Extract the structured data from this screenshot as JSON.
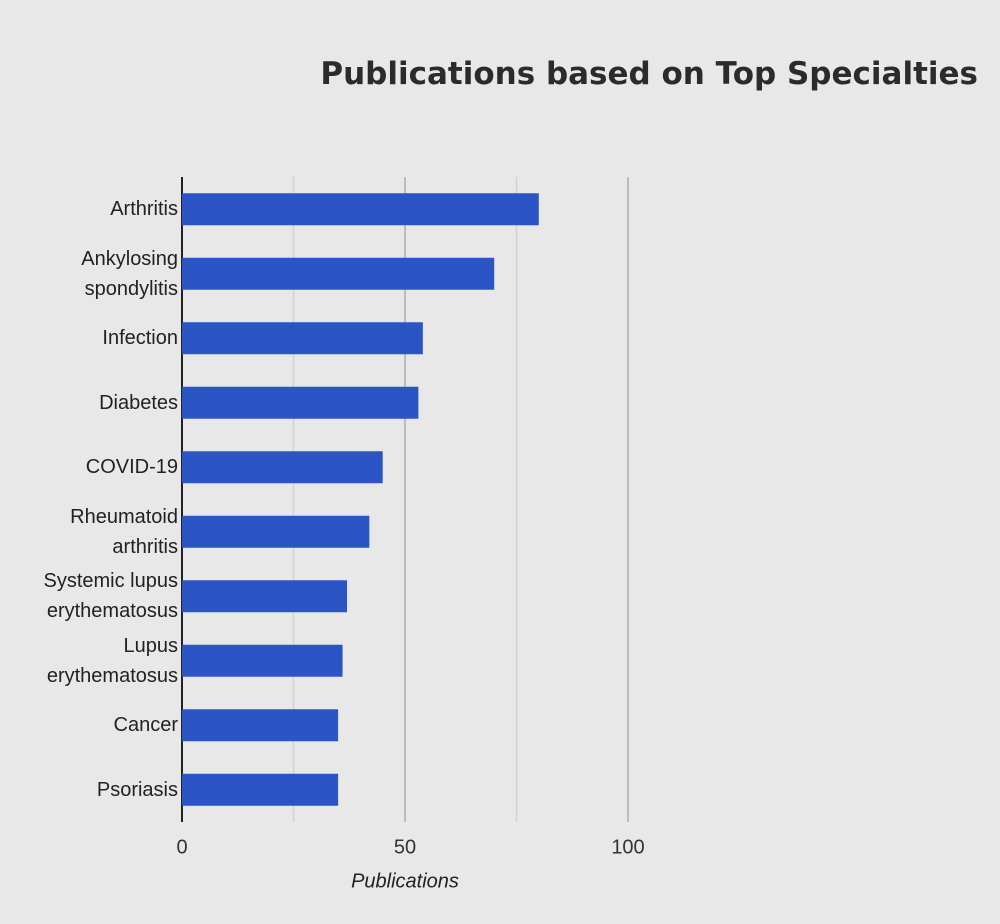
{
  "chart_data": {
    "type": "bar",
    "orientation": "horizontal",
    "title": "Publications based on Top Specialties",
    "x_label": "Publications",
    "categories": [
      "Arthritis",
      "Ankylosing spondylitis",
      "Infection",
      "Diabetes",
      "COVID-19",
      "Rheumatoid arthritis",
      "Systemic lupus erythematosus",
      "Lupus erythematosus",
      "Cancer",
      "Psoriasis"
    ],
    "values": [
      80,
      70,
      54,
      53,
      45,
      42,
      37,
      36,
      35,
      35
    ],
    "color": "#2b55c4",
    "xlim": [
      0,
      100
    ],
    "xticks": [
      0,
      50,
      100
    ],
    "xminor": [
      25,
      75
    ],
    "grid": true
  }
}
